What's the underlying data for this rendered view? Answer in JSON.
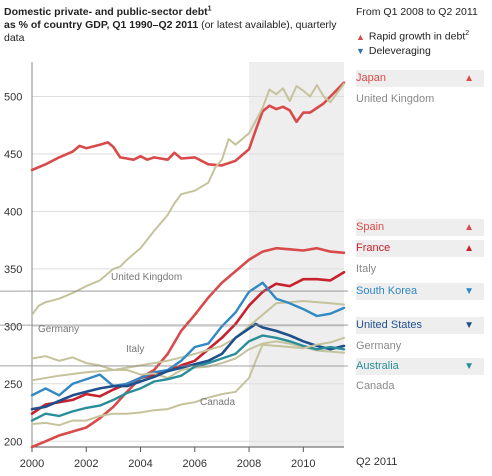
{
  "title": {
    "bold": "Domestic private- and public-sector debt",
    "bold_sup": "1",
    "bold2": "as % of country GDP, Q1 1990–Q2 2011",
    "rest": " (or latest available), quarterly data"
  },
  "legend": {
    "period": "From Q1 2008 to Q2 2011",
    "items": [
      {
        "label": "Rapid growth in debt",
        "sup": "2",
        "symbol": "▲",
        "color": "#d94a4a"
      },
      {
        "label": "Deleveraging",
        "symbol": "▼",
        "color": "#2f6fb0"
      }
    ]
  },
  "colors": {
    "red": "#d94a4a",
    "beige": "#c5c39c",
    "blue": "#3088c4",
    "teal": "#2a8e9a",
    "navy": "#1f4f8c",
    "gray_text": "#8a8a8a",
    "shade": "#eeeeee"
  },
  "chart_data": {
    "type": "line",
    "x_range": [
      2000,
      2011.5
    ],
    "x_ticks": [
      2000,
      2002,
      2004,
      2006,
      2008,
      2010
    ],
    "x_end_label": "Q2 2011",
    "y_range": [
      195,
      530
    ],
    "y_ticks": [
      200,
      250,
      300,
      350,
      400,
      450,
      500
    ],
    "shaded_from": 2008,
    "series": [
      {
        "name": "Japan",
        "color": "#d94a4a",
        "width": 2.6,
        "points": [
          [
            2000,
            436
          ],
          [
            2000.5,
            441
          ],
          [
            2001,
            447
          ],
          [
            2001.5,
            452
          ],
          [
            2001.75,
            457
          ],
          [
            2002,
            455
          ],
          [
            2002.5,
            458
          ],
          [
            2002.8,
            460
          ],
          [
            2003,
            456
          ],
          [
            2003.25,
            447
          ],
          [
            2003.75,
            445
          ],
          [
            2004,
            448
          ],
          [
            2004.25,
            445
          ],
          [
            2004.5,
            447
          ],
          [
            2005,
            445
          ],
          [
            2005.25,
            451
          ],
          [
            2005.5,
            446
          ],
          [
            2006,
            447
          ],
          [
            2006.5,
            441
          ],
          [
            2007,
            440
          ],
          [
            2007.5,
            444
          ],
          [
            2008,
            454
          ],
          [
            2008.25,
            471
          ],
          [
            2008.5,
            487
          ],
          [
            2008.75,
            492
          ],
          [
            2009,
            489
          ],
          [
            2009.25,
            491
          ],
          [
            2009.5,
            488
          ],
          [
            2009.75,
            478
          ],
          [
            2010,
            486
          ],
          [
            2010.25,
            486
          ],
          [
            2010.5,
            490
          ],
          [
            2010.75,
            494
          ],
          [
            2011,
            500
          ],
          [
            2011.25,
            506
          ],
          [
            2011.5,
            512
          ]
        ]
      },
      {
        "name": "United Kingdom",
        "color": "#c5c39c",
        "width": 2.0,
        "points": [
          [
            2000,
            310
          ],
          [
            2000.25,
            318
          ],
          [
            2000.5,
            321
          ],
          [
            2001,
            324
          ],
          [
            2001.5,
            329
          ],
          [
            2002,
            335
          ],
          [
            2002.5,
            340
          ],
          [
            2003,
            350
          ],
          [
            2003.25,
            352
          ],
          [
            2003.5,
            358
          ],
          [
            2004,
            368
          ],
          [
            2004.5,
            383
          ],
          [
            2005,
            397
          ],
          [
            2005.25,
            407
          ],
          [
            2005.5,
            415
          ],
          [
            2006,
            418
          ],
          [
            2006.5,
            425
          ],
          [
            2006.75,
            438
          ],
          [
            2007,
            445
          ],
          [
            2007.25,
            463
          ],
          [
            2007.5,
            458
          ],
          [
            2008,
            468
          ],
          [
            2008.5,
            490
          ],
          [
            2008.75,
            506
          ],
          [
            2009,
            502
          ],
          [
            2009.25,
            507
          ],
          [
            2009.5,
            496
          ],
          [
            2009.75,
            509
          ],
          [
            2010,
            505
          ],
          [
            2010.25,
            500
          ],
          [
            2010.5,
            510
          ],
          [
            2010.75,
            500
          ],
          [
            2011,
            495
          ],
          [
            2011.5,
            511
          ]
        ]
      },
      {
        "name": "Spain",
        "color": "#d94a4a",
        "width": 2.6,
        "points": [
          [
            2000,
            195
          ],
          [
            2000.5,
            200
          ],
          [
            2001,
            205
          ],
          [
            2002,
            212
          ],
          [
            2002.5,
            220
          ],
          [
            2003,
            230
          ],
          [
            2003.5,
            243
          ],
          [
            2004,
            255
          ],
          [
            2004.5,
            262
          ],
          [
            2005,
            276
          ],
          [
            2005.5,
            296
          ],
          [
            2006,
            310
          ],
          [
            2006.5,
            325
          ],
          [
            2007,
            338
          ],
          [
            2007.5,
            348
          ],
          [
            2008,
            358
          ],
          [
            2008.5,
            365
          ],
          [
            2009,
            368
          ],
          [
            2009.5,
            367
          ],
          [
            2010,
            366
          ],
          [
            2010.5,
            368
          ],
          [
            2011,
            365
          ],
          [
            2011.5,
            364
          ]
        ]
      },
      {
        "name": "France",
        "color": "#c8202c",
        "width": 2.6,
        "points": [
          [
            2000,
            224
          ],
          [
            2000.5,
            232
          ],
          [
            2001,
            234
          ],
          [
            2001.5,
            236
          ],
          [
            2002,
            241
          ],
          [
            2002.5,
            239
          ],
          [
            2003,
            245
          ],
          [
            2003.5,
            250
          ],
          [
            2004,
            255
          ],
          [
            2004.5,
            258
          ],
          [
            2005,
            261
          ],
          [
            2005.5,
            266
          ],
          [
            2006,
            270
          ],
          [
            2006.5,
            280
          ],
          [
            2007,
            290
          ],
          [
            2007.5,
            302
          ],
          [
            2008,
            318
          ],
          [
            2008.5,
            330
          ],
          [
            2009,
            337
          ],
          [
            2009.5,
            335
          ],
          [
            2010,
            341
          ],
          [
            2010.5,
            341
          ],
          [
            2011,
            340
          ],
          [
            2011.5,
            347
          ]
        ]
      },
      {
        "name": "Italy",
        "color": "#c5c39c",
        "width": 2.0,
        "points": [
          [
            2000,
            253
          ],
          [
            2001,
            257
          ],
          [
            2002,
            260
          ],
          [
            2003,
            262
          ],
          [
            2004,
            266
          ],
          [
            2005,
            270
          ],
          [
            2006,
            276
          ],
          [
            2007,
            283
          ],
          [
            2007.5,
            290
          ],
          [
            2008,
            300
          ],
          [
            2008.5,
            310
          ],
          [
            2009,
            320
          ],
          [
            2009.5,
            321
          ],
          [
            2010,
            322
          ],
          [
            2011,
            320
          ],
          [
            2011.5,
            319
          ]
        ]
      },
      {
        "name": "South Korea",
        "color": "#3088c4",
        "width": 2.4,
        "points": [
          [
            2000,
            240
          ],
          [
            2000.5,
            246
          ],
          [
            2001,
            240
          ],
          [
            2001.5,
            250
          ],
          [
            2002,
            254
          ],
          [
            2002.5,
            258
          ],
          [
            2003,
            248
          ],
          [
            2003.5,
            250
          ],
          [
            2004,
            255
          ],
          [
            2004.5,
            260
          ],
          [
            2005,
            262
          ],
          [
            2005.5,
            270
          ],
          [
            2006,
            282
          ],
          [
            2006.5,
            285
          ],
          [
            2007,
            300
          ],
          [
            2007.5,
            312
          ],
          [
            2008,
            330
          ],
          [
            2008.5,
            338
          ],
          [
            2009,
            324
          ],
          [
            2009.5,
            320
          ],
          [
            2010,
            315
          ],
          [
            2010.5,
            309
          ],
          [
            2011,
            311
          ],
          [
            2011.5,
            316
          ]
        ]
      },
      {
        "name": "Germany",
        "color": "#c5c39c",
        "width": 2.0,
        "points": [
          [
            2000,
            272
          ],
          [
            2000.5,
            274
          ],
          [
            2001,
            270
          ],
          [
            2001.5,
            273
          ],
          [
            2002,
            268
          ],
          [
            2002.5,
            266
          ],
          [
            2003,
            262
          ],
          [
            2003.5,
            262
          ],
          [
            2004,
            258
          ],
          [
            2004.5,
            259
          ],
          [
            2005,
            255
          ],
          [
            2005.5,
            262
          ],
          [
            2006,
            264
          ],
          [
            2006.5,
            265
          ],
          [
            2007,
            268
          ],
          [
            2007.5,
            272
          ],
          [
            2008,
            280
          ],
          [
            2008.5,
            285
          ],
          [
            2009,
            287
          ],
          [
            2009.5,
            285
          ],
          [
            2010,
            282
          ],
          [
            2010.5,
            279
          ],
          [
            2011,
            278
          ],
          [
            2011.5,
            277
          ]
        ]
      },
      {
        "name": "United States",
        "color": "#1f4f8c",
        "width": 2.6,
        "points": [
          [
            2000,
            228
          ],
          [
            2000.5,
            230
          ],
          [
            2001,
            235
          ],
          [
            2001.5,
            240
          ],
          [
            2002,
            243
          ],
          [
            2002.5,
            246
          ],
          [
            2003,
            248
          ],
          [
            2003.5,
            248
          ],
          [
            2004,
            252
          ],
          [
            2004.5,
            256
          ],
          [
            2005,
            261
          ],
          [
            2005.5,
            264
          ],
          [
            2006,
            267
          ],
          [
            2006.5,
            270
          ],
          [
            2007,
            276
          ],
          [
            2007.5,
            290
          ],
          [
            2008,
            298
          ],
          [
            2008.25,
            302
          ],
          [
            2008.5,
            299
          ],
          [
            2009,
            296
          ],
          [
            2009.5,
            292
          ],
          [
            2010,
            287
          ],
          [
            2010.5,
            283
          ],
          [
            2011,
            280
          ],
          [
            2011.5,
            283
          ]
        ]
      },
      {
        "name": "Australia",
        "color": "#2a8e9a",
        "width": 2.4,
        "points": [
          [
            2000,
            218
          ],
          [
            2000.5,
            224
          ],
          [
            2001,
            222
          ],
          [
            2001.5,
            226
          ],
          [
            2002,
            229
          ],
          [
            2002.5,
            231
          ],
          [
            2003,
            236
          ],
          [
            2003.5,
            242
          ],
          [
            2004,
            246
          ],
          [
            2004.5,
            252
          ],
          [
            2005,
            254
          ],
          [
            2005.5,
            257
          ],
          [
            2006,
            265
          ],
          [
            2006.5,
            268
          ],
          [
            2007,
            272
          ],
          [
            2007.5,
            276
          ],
          [
            2008,
            287
          ],
          [
            2008.5,
            292
          ],
          [
            2009,
            290
          ],
          [
            2009.5,
            287
          ],
          [
            2010,
            283
          ],
          [
            2010.5,
            280
          ],
          [
            2011,
            282
          ],
          [
            2011.5,
            280
          ]
        ]
      },
      {
        "name": "Canada",
        "color": "#c5c39c",
        "width": 2.0,
        "points": [
          [
            2000,
            215
          ],
          [
            2000.5,
            216
          ],
          [
            2001,
            214
          ],
          [
            2001.5,
            218
          ],
          [
            2002,
            218
          ],
          [
            2002.5,
            222
          ],
          [
            2003,
            224
          ],
          [
            2003.5,
            224
          ],
          [
            2004,
            225
          ],
          [
            2004.5,
            227
          ],
          [
            2005,
            228
          ],
          [
            2005.5,
            232
          ],
          [
            2006,
            234
          ],
          [
            2006.5,
            238
          ],
          [
            2007,
            241
          ],
          [
            2007.5,
            243
          ],
          [
            2008,
            255
          ],
          [
            2008.25,
            270
          ],
          [
            2008.5,
            284
          ],
          [
            2009,
            283
          ],
          [
            2009.5,
            282
          ],
          [
            2010,
            281
          ],
          [
            2010.5,
            284
          ],
          [
            2011,
            286
          ],
          [
            2011.5,
            290
          ]
        ]
      }
    ],
    "side_labels": [
      {
        "name": "Japan",
        "symbol": "▲",
        "color": "#d94a4a",
        "shade": true
      },
      {
        "name": "United Kingdom",
        "symbol": "",
        "color": "#8a8a8a",
        "shade": false
      },
      {
        "name": "Spain",
        "symbol": "▲",
        "color": "#d94a4a",
        "shade": true
      },
      {
        "name": "France",
        "symbol": "▲",
        "color": "#c8202c",
        "shade": true
      },
      {
        "name": "Italy",
        "symbol": "",
        "color": "#8a8a8a",
        "shade": false
      },
      {
        "name": "South Korea",
        "symbol": "▼",
        "color": "#3088c4",
        "shade": true
      },
      {
        "name": "United States",
        "symbol": "▼",
        "color": "#1f4f8c",
        "shade": true
      },
      {
        "name": "Germany",
        "symbol": "",
        "color": "#8a8a8a",
        "shade": false
      },
      {
        "name": "Australia",
        "symbol": "▼",
        "color": "#2a8e9a",
        "shade": true
      },
      {
        "name": "Canada",
        "symbol": "",
        "color": "#8a8a8a",
        "shade": false
      }
    ],
    "inline_labels": [
      "United Kingdom",
      "Germany",
      "Italy",
      "Canada"
    ]
  }
}
